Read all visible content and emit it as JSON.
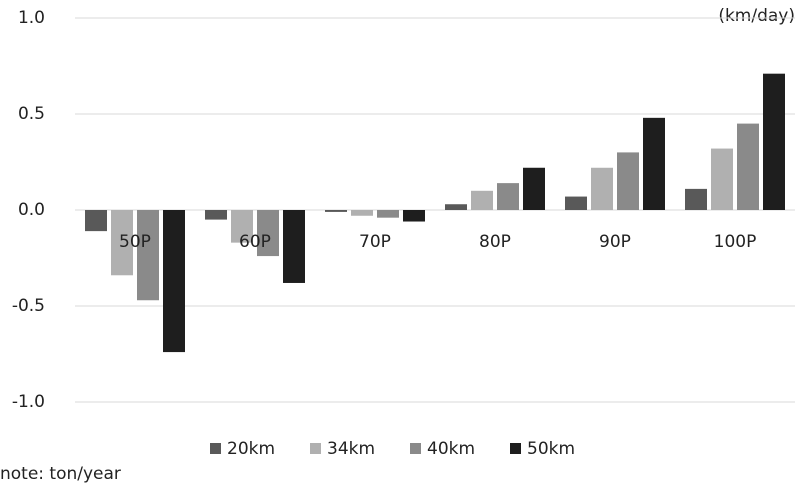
{
  "chart_data": {
    "type": "bar",
    "unit_label": "(km/day)",
    "note": "note: ton/year",
    "categories": [
      "50P",
      "60P",
      "70P",
      "80P",
      "90P",
      "100P"
    ],
    "series": [
      {
        "name": "20km",
        "color": "#595959",
        "values": [
          -0.11,
          -0.05,
          -0.01,
          0.03,
          0.07,
          0.11
        ]
      },
      {
        "name": "34km",
        "color": "#b0b0b0",
        "values": [
          -0.34,
          -0.17,
          -0.03,
          0.1,
          0.22,
          0.32
        ]
      },
      {
        "name": "40km",
        "color": "#8a8a8a",
        "values": [
          -0.47,
          -0.24,
          -0.04,
          0.14,
          0.3,
          0.45
        ]
      },
      {
        "name": "50km",
        "color": "#1e1e1e",
        "values": [
          -0.74,
          -0.38,
          -0.06,
          0.22,
          0.48,
          0.71
        ]
      }
    ],
    "ylim": [
      -1,
      1
    ],
    "yticks": [
      {
        "value": -1,
        "label": "-1.0"
      },
      -0.5,
      {
        "value": 0,
        "label": "0.0"
      },
      0.5,
      {
        "value": 1,
        "label": "1.0"
      }
    ],
    "grid": true,
    "legend": "bottom"
  }
}
